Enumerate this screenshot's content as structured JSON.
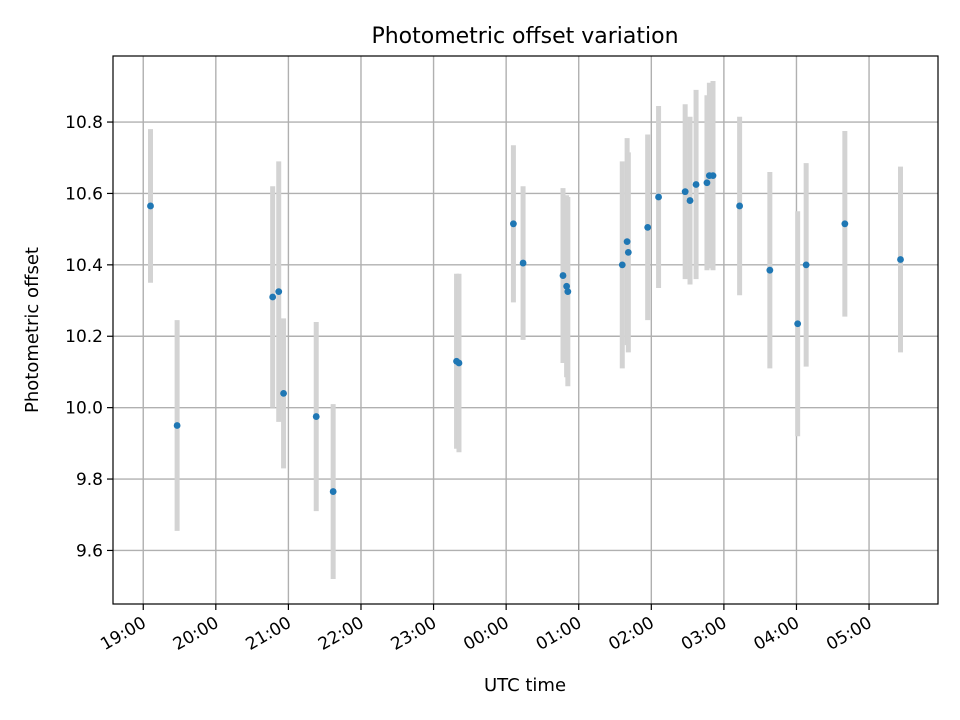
{
  "chart_data": {
    "type": "scatter",
    "title": "Photometric offset variation",
    "xlabel": "UTC time",
    "ylabel": "Photometric offset",
    "x_ticks": [
      "19:00",
      "20:00",
      "21:00",
      "22:00",
      "23:00",
      "00:00",
      "01:00",
      "02:00",
      "03:00",
      "04:00",
      "05:00"
    ],
    "x_tick_hours": [
      0,
      1,
      2,
      3,
      4,
      5,
      6,
      7,
      8,
      9,
      10
    ],
    "y_ticks": [
      "9.6",
      "9.8",
      "10.0",
      "10.2",
      "10.4",
      "10.6",
      "10.8"
    ],
    "y_tick_values": [
      9.6,
      9.8,
      10.0,
      10.2,
      10.4,
      10.6,
      10.8
    ],
    "xlim": [
      "18:35",
      "05:57"
    ],
    "ylim": [
      9.45,
      10.985
    ],
    "grid": true,
    "marker_color": "#1f77b4",
    "errorbar_color": "#d3d3d3",
    "points": [
      {
        "t": "19:06",
        "y": 10.565,
        "err": 0.215
      },
      {
        "t": "19:28",
        "y": 9.95,
        "err": 0.295
      },
      {
        "t": "20:47",
        "y": 10.31,
        "err": 0.31
      },
      {
        "t": "20:52",
        "y": 10.325,
        "err": 0.365
      },
      {
        "t": "20:56",
        "y": 10.04,
        "err": 0.21
      },
      {
        "t": "21:23",
        "y": 9.975,
        "err": 0.265
      },
      {
        "t": "21:37",
        "y": 9.765,
        "err": 0.245
      },
      {
        "t": "23:19",
        "y": 10.13,
        "err": 0.245
      },
      {
        "t": "23:21",
        "y": 10.125,
        "err": 0.25
      },
      {
        "t": "00:06",
        "y": 10.515,
        "err": 0.22
      },
      {
        "t": "00:14",
        "y": 10.405,
        "err": 0.215
      },
      {
        "t": "00:47",
        "y": 10.37,
        "err": 0.245
      },
      {
        "t": "00:50",
        "y": 10.34,
        "err": 0.255
      },
      {
        "t": "00:51",
        "y": 10.325,
        "err": 0.265
      },
      {
        "t": "01:36",
        "y": 10.4,
        "err": 0.29
      },
      {
        "t": "01:40",
        "y": 10.465,
        "err": 0.29
      },
      {
        "t": "01:41",
        "y": 10.435,
        "err": 0.28
      },
      {
        "t": "01:57",
        "y": 10.505,
        "err": 0.26
      },
      {
        "t": "02:06",
        "y": 10.59,
        "err": 0.255
      },
      {
        "t": "02:28",
        "y": 10.605,
        "err": 0.245
      },
      {
        "t": "02:32",
        "y": 10.58,
        "err": 0.235
      },
      {
        "t": "02:37",
        "y": 10.625,
        "err": 0.265
      },
      {
        "t": "02:46",
        "y": 10.63,
        "err": 0.245
      },
      {
        "t": "02:48",
        "y": 10.65,
        "err": 0.26
      },
      {
        "t": "02:51",
        "y": 10.65,
        "err": 0.265
      },
      {
        "t": "03:13",
        "y": 10.565,
        "err": 0.25
      },
      {
        "t": "03:38",
        "y": 10.385,
        "err": 0.275
      },
      {
        "t": "04:01",
        "y": 10.235,
        "err": 0.315
      },
      {
        "t": "04:08",
        "y": 10.4,
        "err": 0.285
      },
      {
        "t": "04:40",
        "y": 10.515,
        "err": 0.26
      },
      {
        "t": "05:26",
        "y": 10.415,
        "err": 0.26
      }
    ]
  }
}
